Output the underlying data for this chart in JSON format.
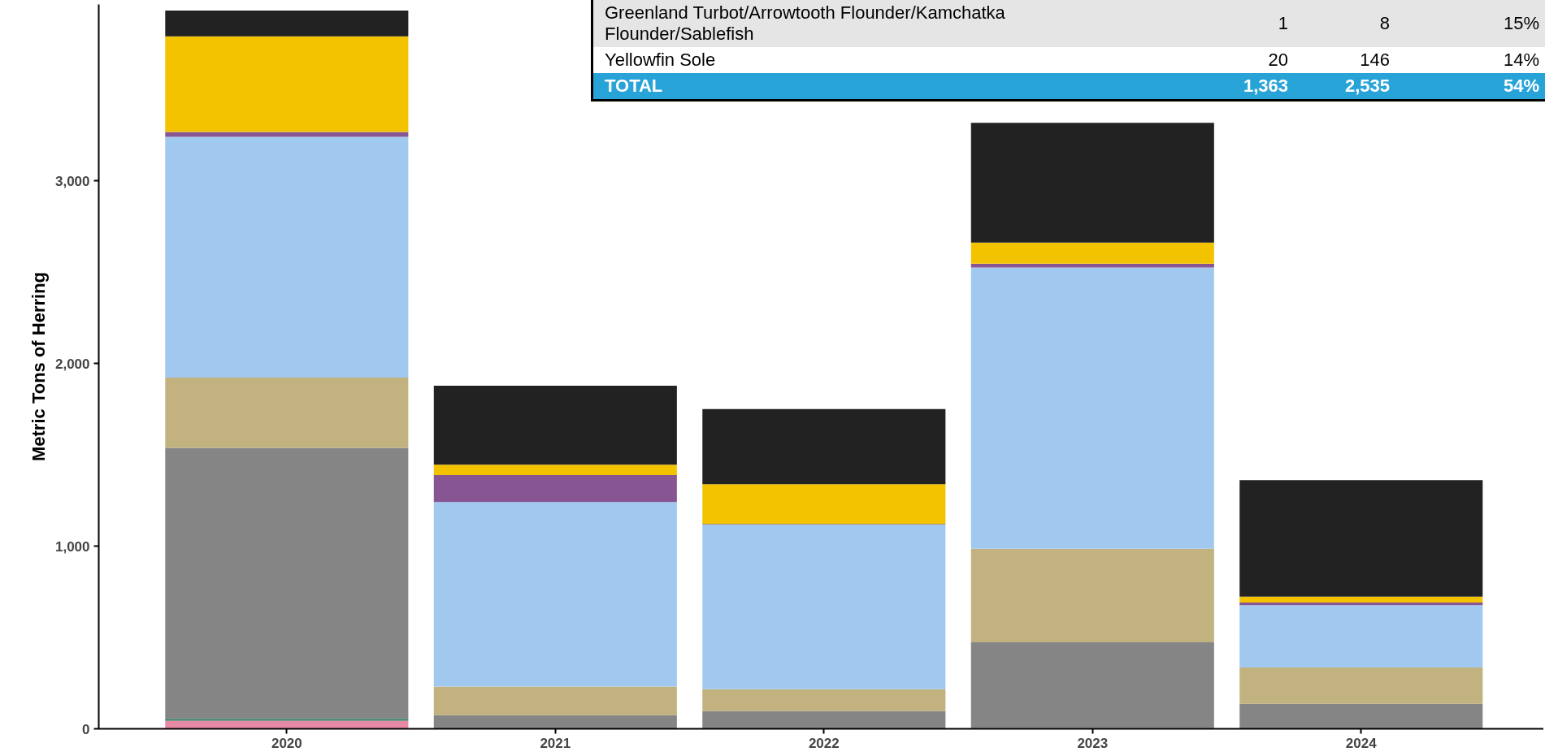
{
  "chart_data": {
    "type": "bar",
    "stacked": true,
    "ylabel": "Metric Tons of Herring",
    "categories": [
      "2020",
      "2021",
      "2022",
      "2023",
      "2024"
    ],
    "series": [
      {
        "color": "#e68aa5",
        "values": [
          45,
          0,
          0,
          0,
          0
        ]
      },
      {
        "color": "#1a7f5a",
        "values": [
          8,
          0,
          0,
          5,
          0
        ]
      },
      {
        "color": "#858585",
        "values": [
          1485,
          75,
          97,
          468,
          137
        ]
      },
      {
        "color": "#c2b280",
        "values": [
          385,
          156,
          120,
          513,
          199
        ]
      },
      {
        "color": "#a1c9ef",
        "values": [
          1318,
          1010,
          901,
          1539,
          341
        ]
      },
      {
        "color": "#875692",
        "values": [
          26,
          148,
          3,
          21,
          14
        ]
      },
      {
        "color": "#f3c300",
        "values": [
          524,
          57,
          218,
          116,
          32
        ]
      },
      {
        "color": "#222222",
        "values": [
          141,
          432,
          411,
          655,
          638
        ]
      }
    ],
    "ylim": [
      0,
      3965
    ],
    "yticks": [
      0,
      {
        "value": 1000,
        "label": "1,000"
      },
      {
        "value": 2000,
        "label": "2,000"
      },
      {
        "value": 3000,
        "label": "3,000"
      }
    ],
    "grid": false,
    "annotations": [
      "Greenland Turbot/Arrowtooth Flounder/Kamchatka Flounder/Sablefish",
      "1",
      "8",
      "15%",
      "Yellowfin Sole",
      "20",
      "146",
      "14%",
      "TOTAL",
      "1,363",
      "2,535",
      "54%"
    ]
  }
}
